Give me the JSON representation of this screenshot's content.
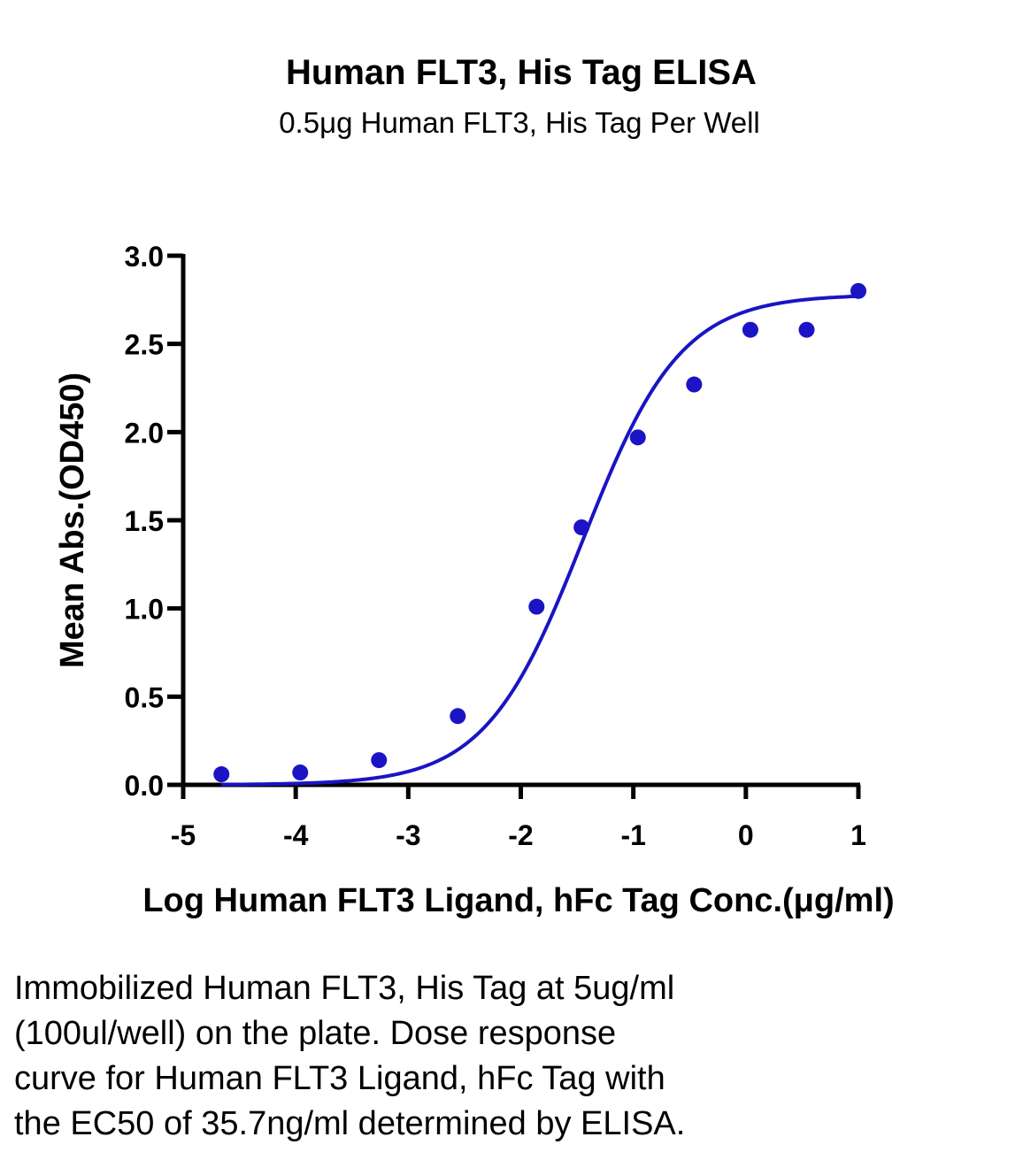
{
  "chart_data": {
    "type": "scatter",
    "title": "Human FLT3, His Tag ELISA",
    "subtitle": "0.5μg Human FLT3, His Tag Per Well",
    "xlabel": "Log Human FLT3 Ligand, hFc Tag Conc.(μg/ml)",
    "ylabel": "Mean Abs.(OD450)",
    "xlim": [
      -5,
      1
    ],
    "ylim": [
      0,
      3
    ],
    "x_ticks": [
      -5,
      -4,
      -3,
      -2,
      -1,
      0,
      1
    ],
    "x_tick_labels": [
      "-5",
      "-4",
      "-3",
      "-2",
      "-1",
      "0",
      "1"
    ],
    "y_ticks": [
      0,
      0.5,
      1,
      1.5,
      2,
      2.5,
      3
    ],
    "y_tick_labels": [
      "0.0",
      "0.5",
      "1.0",
      "1.5",
      "2.0",
      "2.5",
      "3.0"
    ],
    "grid": false,
    "legend": "none",
    "color": "#1a14c4",
    "series": [
      {
        "points": [
          {
            "x": -4.66,
            "y": 0.06
          },
          {
            "x": -3.96,
            "y": 0.07
          },
          {
            "x": -3.26,
            "y": 0.14
          },
          {
            "x": -2.56,
            "y": 0.39
          },
          {
            "x": -1.86,
            "y": 1.01
          },
          {
            "x": -1.46,
            "y": 1.46
          },
          {
            "x": -0.96,
            "y": 1.97
          },
          {
            "x": -0.46,
            "y": 2.27
          },
          {
            "x": 0.04,
            "y": 2.58
          },
          {
            "x": 0.54,
            "y": 2.58
          },
          {
            "x": 1.0,
            "y": 2.8
          }
        ],
        "fit": {
          "model": "4PL",
          "bottom": 0.0,
          "top": 2.78,
          "log_ec50": -1.447,
          "hill_slope": 1.0,
          "x_range": [
            -4.66,
            1.0
          ]
        }
      }
    ]
  },
  "caption": {
    "lines": [
      "Immobilized Human FLT3, His Tag at 5ug/ml",
      "(100ul/well) on the plate. Dose response",
      "curve for Human FLT3 Ligand, hFc Tag with",
      "the EC50 of 35.7ng/ml determined by ELISA."
    ]
  }
}
